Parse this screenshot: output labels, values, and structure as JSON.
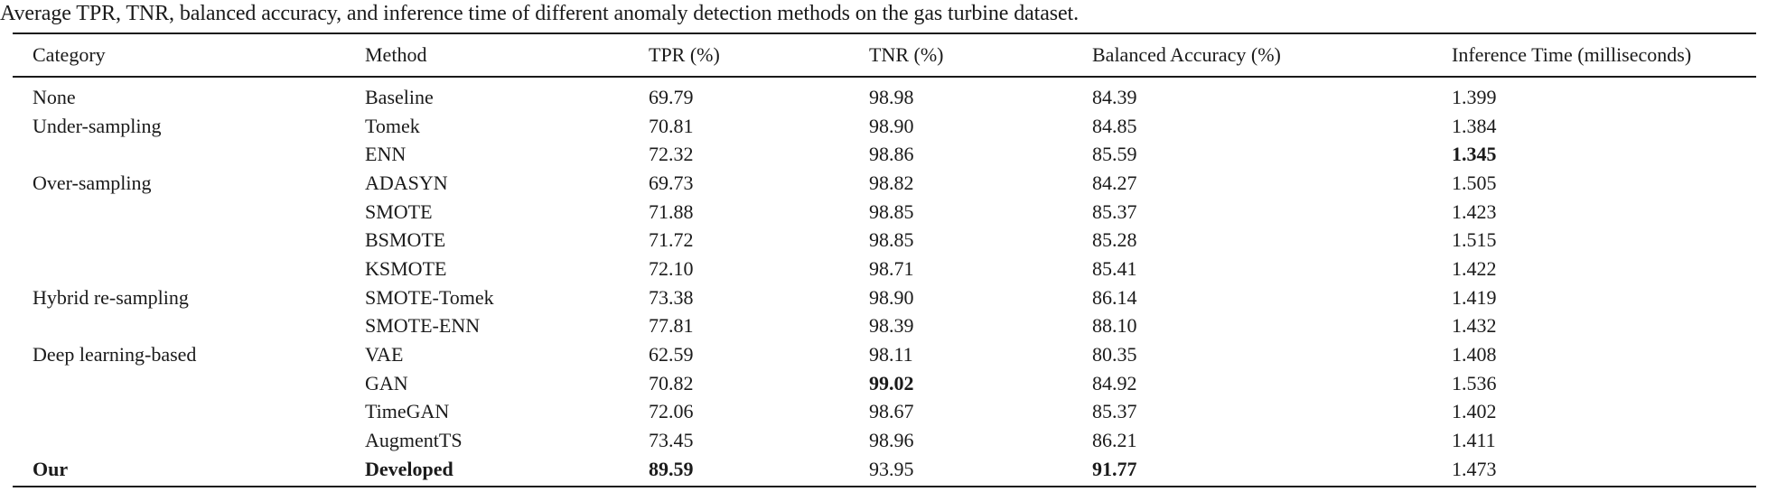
{
  "caption": "Average TPR, TNR, balanced accuracy, and inference time of different anomaly detection methods on the gas turbine dataset.",
  "headers": [
    "Category",
    "Method",
    "TPR (%)",
    "TNR (%)",
    "Balanced Accuracy (%)",
    "Inference Time (milliseconds)"
  ],
  "rows": [
    {
      "category": "None",
      "method": "Baseline",
      "tpr": "69.79",
      "tnr": "98.98",
      "bacc": "84.39",
      "time": "1.399",
      "bold": []
    },
    {
      "category": "Under-sampling",
      "method": "Tomek",
      "tpr": "70.81",
      "tnr": "98.90",
      "bacc": "84.85",
      "time": "1.384",
      "bold": []
    },
    {
      "category": "",
      "method": "ENN",
      "tpr": "72.32",
      "tnr": "98.86",
      "bacc": "85.59",
      "time": "1.345",
      "bold": [
        "time"
      ]
    },
    {
      "category": "Over-sampling",
      "method": "ADASYN",
      "tpr": "69.73",
      "tnr": "98.82",
      "bacc": "84.27",
      "time": "1.505",
      "bold": []
    },
    {
      "category": "",
      "method": "SMOTE",
      "tpr": "71.88",
      "tnr": "98.85",
      "bacc": "85.37",
      "time": "1.423",
      "bold": []
    },
    {
      "category": "",
      "method": "BSMOTE",
      "tpr": "71.72",
      "tnr": "98.85",
      "bacc": "85.28",
      "time": "1.515",
      "bold": []
    },
    {
      "category": "",
      "method": "KSMOTE",
      "tpr": "72.10",
      "tnr": "98.71",
      "bacc": "85.41",
      "time": "1.422",
      "bold": []
    },
    {
      "category": "Hybrid re-sampling",
      "method": "SMOTE-Tomek",
      "tpr": "73.38",
      "tnr": "98.90",
      "bacc": "86.14",
      "time": "1.419",
      "bold": []
    },
    {
      "category": "",
      "method": "SMOTE-ENN",
      "tpr": "77.81",
      "tnr": "98.39",
      "bacc": "88.10",
      "time": "1.432",
      "bold": []
    },
    {
      "category": "Deep learning-based",
      "method": "VAE",
      "tpr": "62.59",
      "tnr": "98.11",
      "bacc": "80.35",
      "time": "1.408",
      "bold": []
    },
    {
      "category": "",
      "method": "GAN",
      "tpr": "70.82",
      "tnr": "99.02",
      "bacc": "84.92",
      "time": "1.536",
      "bold": [
        "tnr"
      ]
    },
    {
      "category": "",
      "method": "TimeGAN",
      "tpr": "72.06",
      "tnr": "98.67",
      "bacc": "85.37",
      "time": "1.402",
      "bold": []
    },
    {
      "category": "",
      "method": "AugmentTS",
      "tpr": "73.45",
      "tnr": "98.96",
      "bacc": "86.21",
      "time": "1.411",
      "bold": []
    },
    {
      "category": "Our",
      "method": "Developed",
      "tpr": "89.59",
      "tnr": "93.95",
      "bacc": "91.77",
      "time": "1.473",
      "bold": [
        "category",
        "method",
        "tpr",
        "bacc"
      ]
    }
  ]
}
